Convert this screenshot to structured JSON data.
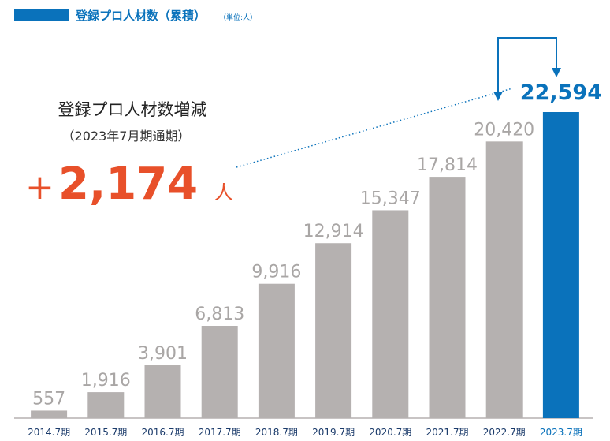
{
  "chart_data": {
    "type": "bar",
    "title": "登録プロ人材数（累積）",
    "unit_note": "（単位:人）",
    "categories": [
      "2014.7期",
      "2015.7期",
      "2016.7期",
      "2017.7期",
      "2018.7期",
      "2019.7期",
      "2020.7期",
      "2021.7期",
      "2022.7期",
      "2023.7期"
    ],
    "values": [
      557,
      1916,
      3901,
      6813,
      9916,
      12914,
      15347,
      17814,
      20420,
      22594
    ],
    "value_labels": [
      "557",
      "1,916",
      "3,901",
      "6,813",
      "9,916",
      "12,914",
      "15,347",
      "17,814",
      "20,420",
      "22,594"
    ],
    "colors": [
      "#b5b1b0",
      "#b5b1b0",
      "#b5b1b0",
      "#b5b1b0",
      "#b5b1b0",
      "#b5b1b0",
      "#b5b1b0",
      "#b5b1b0",
      "#b5b1b0",
      "#0a72bb"
    ],
    "annotation": {
      "title": "登録プロ人材数増減",
      "subtitle": "（2023年7月期通期）",
      "sign": "+",
      "value": "2,174",
      "unit": "人"
    }
  }
}
